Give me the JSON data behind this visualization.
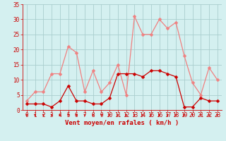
{
  "x": [
    0,
    1,
    2,
    3,
    4,
    5,
    6,
    7,
    8,
    9,
    10,
    11,
    12,
    13,
    14,
    15,
    16,
    17,
    18,
    19,
    20,
    21,
    22,
    23
  ],
  "rafales": [
    3,
    6,
    6,
    12,
    12,
    21,
    19,
    6,
    13,
    6,
    9,
    15,
    5,
    31,
    25,
    25,
    30,
    27,
    29,
    18,
    9,
    5,
    14,
    10
  ],
  "moyen": [
    2,
    2,
    2,
    1,
    3,
    8,
    3,
    3,
    2,
    2,
    4,
    12,
    12,
    12,
    11,
    13,
    13,
    12,
    11,
    1,
    1,
    4,
    3,
    3
  ],
  "color_rafales": "#f08080",
  "color_moyen": "#cc0000",
  "bg_color": "#d4f0f0",
  "grid_color": "#aacece",
  "xlabel": "Vent moyen/en rafales ( km/h )",
  "xlim_min": -0.5,
  "xlim_max": 23.5,
  "ylim_min": 0,
  "ylim_max": 35,
  "yticks": [
    0,
    5,
    10,
    15,
    20,
    25,
    30,
    35
  ],
  "xticks": [
    0,
    1,
    2,
    3,
    4,
    5,
    6,
    7,
    8,
    9,
    10,
    11,
    12,
    13,
    14,
    15,
    16,
    17,
    18,
    19,
    20,
    21,
    22,
    23
  ],
  "marker_size": 2.5,
  "line_width": 0.9
}
